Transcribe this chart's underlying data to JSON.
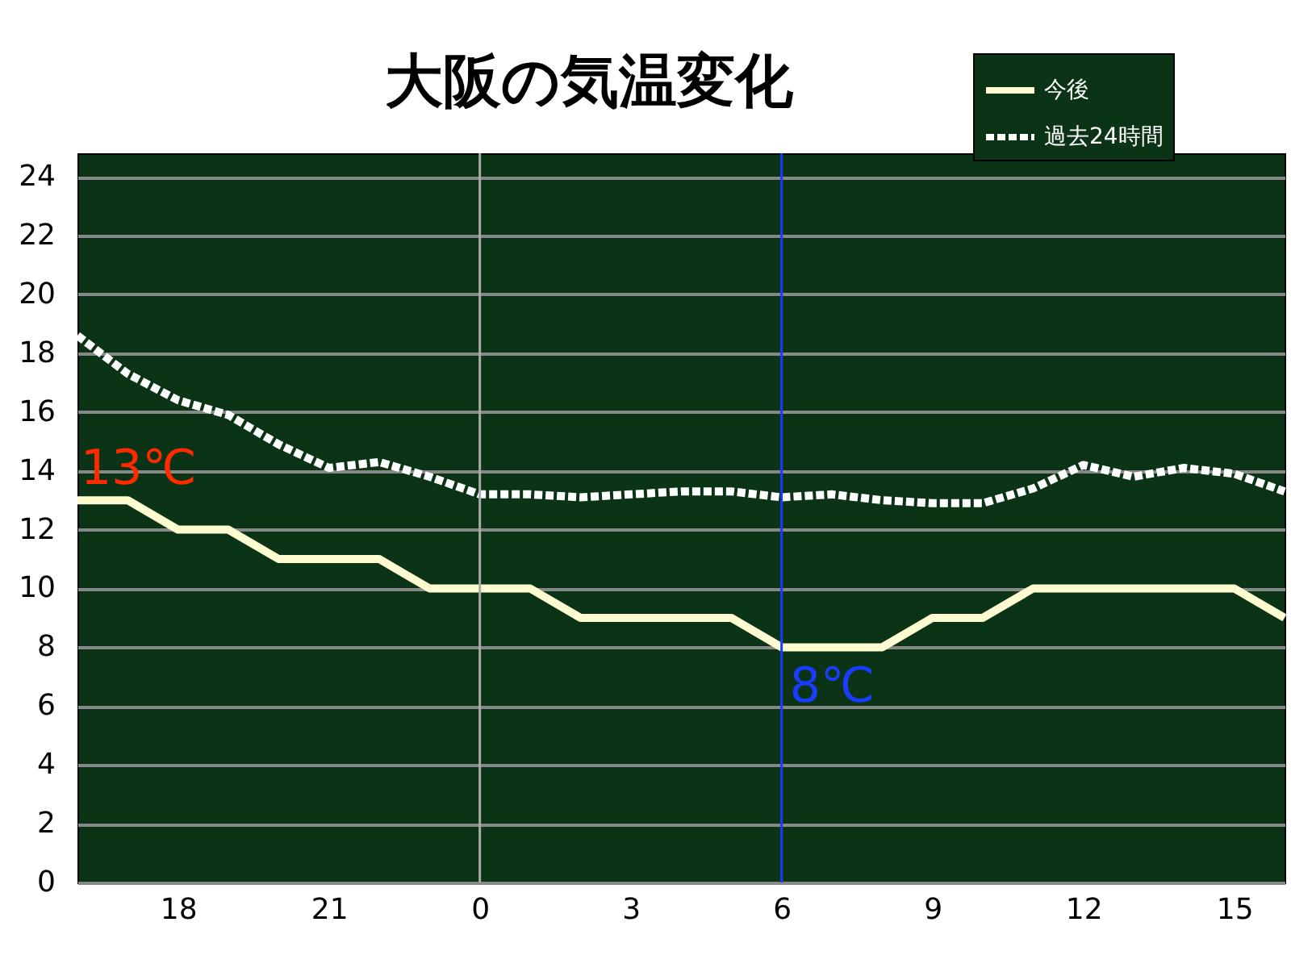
{
  "chart_data": {
    "type": "line",
    "title": "大阪の気温変化",
    "x": [
      "--01-01T16:00",
      "--01-01T17:00",
      "--01-01T18:00",
      "--01-01T19:00",
      "--01-01T20:00",
      "--01-01T21:00",
      "--01-01T22:00",
      "--01-01T23:00",
      "--01-02T00:00",
      "--01-02T01:00",
      "--01-02T02:00",
      "--01-02T03:00",
      "--01-02T04:00",
      "--01-02T05:00",
      "--01-02T06:00",
      "--01-02T07:00",
      "--01-02T08:00",
      "--01-02T09:00",
      "--01-02T10:00",
      "--01-02T11:00",
      "--01-02T12:00",
      "--01-02T13:00",
      "--01-02T14:00",
      "--01-02T15:00",
      "--01-02T16:00"
    ],
    "series": [
      {
        "name": "今後",
        "color": "#fffbd0",
        "line_style": "solid",
        "values": [
          13,
          13,
          12,
          12,
          11,
          11,
          11,
          10,
          10,
          10,
          9,
          9,
          9,
          9,
          8,
          8,
          8,
          9,
          9,
          10,
          10,
          10,
          10,
          10,
          9
        ]
      },
      {
        "name": "過去24時間",
        "color": "#ffffff",
        "line_style": "dashed",
        "values": [
          18.6,
          17.3,
          16.4,
          15.9,
          14.9,
          14.1,
          14.3,
          13.8,
          13.2,
          13.2,
          13.1,
          13.2,
          13.3,
          13.3,
          13.1,
          13.2,
          13.0,
          12.9,
          12.9,
          13.4,
          14.2,
          13.8,
          14.1,
          13.9,
          13.3
        ]
      }
    ],
    "xlim": [
      "--01-01T16:00",
      "--01-02T16:00"
    ],
    "xticks": [
      {
        "value": "--01-01T18:00",
        "label": "18"
      },
      {
        "value": "--01-01T21:00",
        "label": "21"
      },
      {
        "value": "--01-02T00:00",
        "label": "0"
      },
      {
        "value": "--01-02T03:00",
        "label": "3"
      },
      {
        "value": "--01-02T06:00",
        "label": "6"
      },
      {
        "value": "--01-02T09:00",
        "label": "9"
      },
      {
        "value": "--01-02T12:00",
        "label": "12"
      },
      {
        "value": "--01-02T15:00",
        "label": "15"
      }
    ],
    "ylim": [
      0,
      24.8
    ],
    "yticks": [
      0,
      2,
      4,
      6,
      8,
      10,
      12,
      14,
      16,
      18,
      20,
      22,
      24
    ],
    "grid": "y",
    "legend": "top right",
    "ref_lines": [
      {
        "axis": "x",
        "value": "--01-02T00:00",
        "color": "#aaaaaa"
      },
      {
        "axis": "x",
        "value": "--01-02T06:00",
        "color": "#1a3cff"
      }
    ],
    "annotations": [
      {
        "text": "13℃",
        "x": "--01-01T16:00",
        "y": 13
      },
      {
        "text": "8℃",
        "x": "--01-02T06:00",
        "y": 8
      }
    ]
  }
}
